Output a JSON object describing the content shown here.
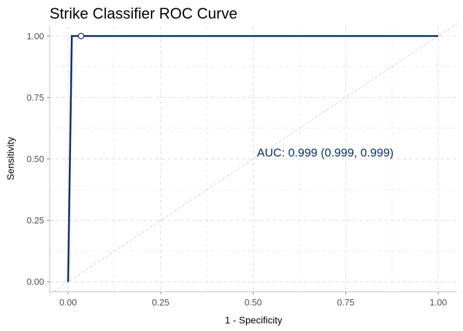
{
  "chart_data": {
    "type": "line",
    "title": "Strike Classifier ROC Curve",
    "xlabel": "1 - Specificity",
    "ylabel": "Sensitivity",
    "xlim": [
      -0.05,
      1.05
    ],
    "ylim": [
      -0.04,
      1.04
    ],
    "x_ticks": [
      "0.00",
      "0.25",
      "0.50",
      "0.75",
      "1.00"
    ],
    "y_ticks": [
      "0.00",
      "0.25",
      "0.50",
      "0.75",
      "1.00"
    ],
    "grid": true,
    "series": [
      {
        "points": [
          [
            0.0,
            0.0
          ],
          [
            0.01,
            1.0
          ],
          [
            0.03,
            1.0
          ],
          [
            1.0,
            1.0
          ]
        ],
        "color": "#08306b"
      }
    ],
    "highlight_point": {
      "x": 0.035,
      "y": 1.0
    },
    "reference_line": {
      "from": [
        0,
        0
      ],
      "to": [
        1,
        1
      ],
      "style": "dashed"
    },
    "annotation": {
      "text": "AUC: 0.999 (0.999, 0.999)",
      "x": 0.51,
      "y": 0.51,
      "color": "#08306b"
    }
  }
}
